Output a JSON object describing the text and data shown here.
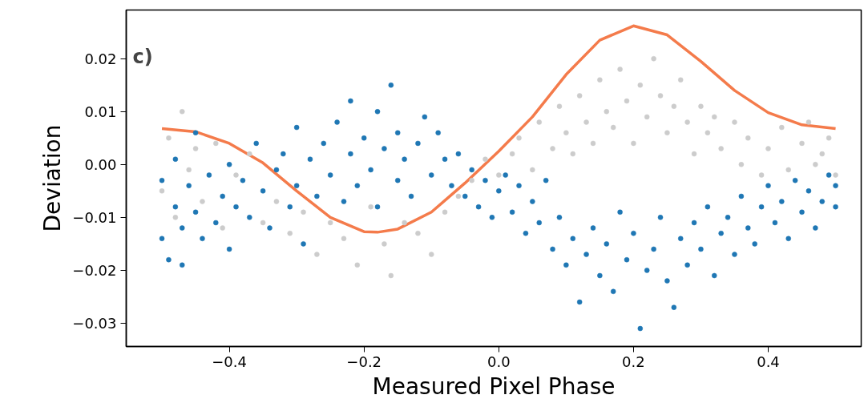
{
  "chart_data": {
    "type": "scatter",
    "xlabel": "Measured Pixel Phase",
    "ylabel": "Deviation",
    "annotations": [
      "c)"
    ],
    "xlim": [
      -0.553,
      0.538
    ],
    "ylim": [
      -0.0344,
      0.0292
    ],
    "xticks": [
      {
        "value": -0.4,
        "label": "−0.4"
      },
      {
        "value": -0.2,
        "label": "−0.2"
      },
      {
        "value": 0.0,
        "label": "0.0"
      },
      {
        "value": 0.2,
        "label": "0.2"
      },
      {
        "value": 0.4,
        "label": "0.4"
      }
    ],
    "yticks": [
      {
        "value": -0.03,
        "label": "−0.03"
      },
      {
        "value": -0.02,
        "label": "−0.02"
      },
      {
        "value": -0.01,
        "label": "−0.01"
      },
      {
        "value": 0.0,
        "label": "0.00"
      },
      {
        "value": 0.01,
        "label": "0.01"
      },
      {
        "value": 0.02,
        "label": "0.02"
      }
    ],
    "series": [
      {
        "marker": "circle",
        "color": "#cccccc",
        "x": [
          -0.5,
          -0.49,
          -0.48,
          -0.47,
          -0.46,
          -0.45,
          -0.44,
          -0.42,
          -0.41,
          -0.39,
          -0.37,
          -0.35,
          -0.33,
          -0.31,
          -0.29,
          -0.27,
          -0.25,
          -0.23,
          -0.21,
          -0.19,
          -0.17,
          -0.16,
          -0.14,
          -0.12,
          -0.1,
          -0.08,
          -0.06,
          -0.04,
          -0.02,
          0.0,
          0.02,
          0.03,
          0.05,
          0.06,
          0.08,
          0.09,
          0.1,
          0.11,
          0.12,
          0.13,
          0.14,
          0.15,
          0.16,
          0.17,
          0.18,
          0.19,
          0.2,
          0.21,
          0.22,
          0.23,
          0.24,
          0.25,
          0.26,
          0.27,
          0.28,
          0.29,
          0.3,
          0.31,
          0.32,
          0.33,
          0.35,
          0.36,
          0.37,
          0.39,
          0.4,
          0.42,
          0.43,
          0.45,
          0.46,
          0.47,
          0.48,
          0.49,
          0.5
        ],
        "values": [
          -0.005,
          0.005,
          -0.01,
          0.01,
          -0.001,
          0.003,
          -0.007,
          0.004,
          -0.012,
          -0.002,
          0.002,
          -0.011,
          -0.007,
          -0.013,
          -0.009,
          -0.017,
          -0.011,
          -0.014,
          -0.019,
          -0.008,
          -0.015,
          -0.021,
          -0.011,
          -0.013,
          -0.017,
          -0.009,
          -0.006,
          -0.003,
          0.001,
          -0.002,
          0.002,
          0.005,
          -0.001,
          0.008,
          0.003,
          0.011,
          0.006,
          0.002,
          0.013,
          0.008,
          0.004,
          0.016,
          0.01,
          0.007,
          0.018,
          0.012,
          0.004,
          0.015,
          0.009,
          0.02,
          0.013,
          0.006,
          0.011,
          0.016,
          0.008,
          0.002,
          0.011,
          0.006,
          0.009,
          0.003,
          0.008,
          0.0,
          0.005,
          -0.002,
          0.003,
          0.007,
          -0.001,
          0.004,
          0.008,
          0.0,
          0.002,
          0.005,
          -0.002
        ]
      },
      {
        "marker": "circle",
        "color": "#1f77b4",
        "x": [
          -0.5,
          -0.5,
          -0.49,
          -0.48,
          -0.48,
          -0.47,
          -0.47,
          -0.46,
          -0.45,
          -0.45,
          -0.44,
          -0.43,
          -0.42,
          -0.41,
          -0.4,
          -0.4,
          -0.39,
          -0.38,
          -0.37,
          -0.36,
          -0.35,
          -0.34,
          -0.33,
          -0.32,
          -0.31,
          -0.3,
          -0.3,
          -0.29,
          -0.28,
          -0.27,
          -0.26,
          -0.25,
          -0.24,
          -0.23,
          -0.22,
          -0.22,
          -0.21,
          -0.2,
          -0.19,
          -0.18,
          -0.18,
          -0.17,
          -0.16,
          -0.15,
          -0.15,
          -0.14,
          -0.13,
          -0.12,
          -0.11,
          -0.1,
          -0.09,
          -0.08,
          -0.07,
          -0.06,
          -0.05,
          -0.04,
          -0.03,
          -0.02,
          -0.01,
          0.0,
          0.01,
          0.02,
          0.03,
          0.04,
          0.05,
          0.06,
          0.07,
          0.08,
          0.09,
          0.1,
          0.11,
          0.12,
          0.13,
          0.14,
          0.15,
          0.16,
          0.17,
          0.18,
          0.19,
          0.2,
          0.21,
          0.22,
          0.23,
          0.24,
          0.25,
          0.26,
          0.27,
          0.28,
          0.29,
          0.3,
          0.31,
          0.32,
          0.33,
          0.34,
          0.35,
          0.36,
          0.37,
          0.38,
          0.39,
          0.4,
          0.41,
          0.42,
          0.43,
          0.44,
          0.45,
          0.46,
          0.47,
          0.48,
          0.49,
          0.5,
          0.5
        ],
        "values": [
          -0.014,
          -0.003,
          -0.018,
          -0.008,
          0.001,
          -0.012,
          -0.019,
          -0.004,
          -0.009,
          0.006,
          -0.014,
          -0.002,
          -0.011,
          -0.006,
          -0.016,
          0.0,
          -0.008,
          -0.003,
          -0.01,
          0.004,
          -0.005,
          -0.012,
          -0.001,
          0.002,
          -0.008,
          -0.004,
          0.007,
          -0.015,
          0.001,
          -0.006,
          0.004,
          -0.002,
          0.008,
          -0.007,
          0.012,
          0.002,
          -0.004,
          0.005,
          -0.001,
          0.01,
          -0.008,
          0.003,
          0.015,
          -0.003,
          0.006,
          0.001,
          -0.006,
          0.004,
          0.009,
          -0.002,
          0.006,
          0.001,
          -0.004,
          0.002,
          -0.006,
          -0.001,
          -0.008,
          -0.003,
          -0.01,
          -0.005,
          -0.002,
          -0.009,
          -0.004,
          -0.013,
          -0.007,
          -0.011,
          -0.003,
          -0.016,
          -0.01,
          -0.019,
          -0.014,
          -0.026,
          -0.017,
          -0.012,
          -0.021,
          -0.015,
          -0.024,
          -0.009,
          -0.018,
          -0.013,
          -0.031,
          -0.02,
          -0.016,
          -0.01,
          -0.022,
          -0.027,
          -0.014,
          -0.019,
          -0.011,
          -0.016,
          -0.008,
          -0.021,
          -0.013,
          -0.01,
          -0.017,
          -0.006,
          -0.012,
          -0.015,
          -0.008,
          -0.004,
          -0.011,
          -0.007,
          -0.014,
          -0.003,
          -0.009,
          -0.005,
          -0.012,
          -0.007,
          -0.002,
          -0.008,
          -0.004
        ]
      },
      {
        "type": "line",
        "marker": "none",
        "color": "#f47b4b",
        "x": [
          -0.5,
          -0.45,
          -0.4,
          -0.35,
          -0.3,
          -0.25,
          -0.2,
          -0.18,
          -0.15,
          -0.1,
          -0.05,
          0.0,
          0.05,
          0.1,
          0.15,
          0.2,
          0.25,
          0.3,
          0.35,
          0.4,
          0.45,
          0.5
        ],
        "values": [
          0.0068,
          0.0062,
          0.004,
          0.0003,
          -0.005,
          -0.01,
          -0.0127,
          -0.0128,
          -0.0122,
          -0.009,
          -0.0035,
          0.0025,
          0.009,
          0.017,
          0.0235,
          0.0262,
          0.0245,
          0.0195,
          0.014,
          0.0098,
          0.0075,
          0.0068
        ]
      }
    ]
  }
}
